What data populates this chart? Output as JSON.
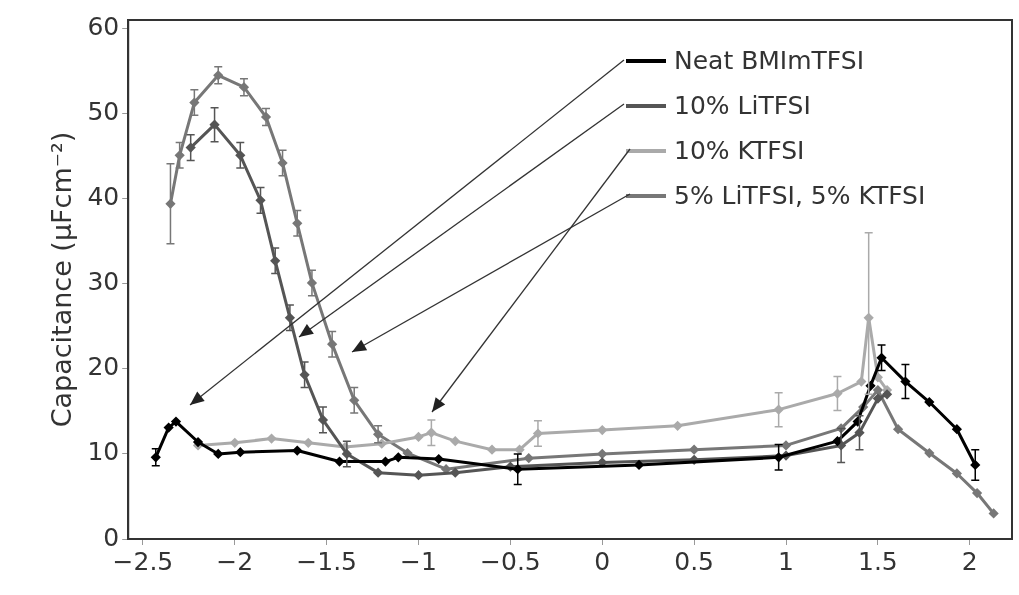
{
  "chart_data": {
    "type": "line",
    "ylabel": "Capacitance (μFcm⁻²)",
    "legend": "top right",
    "marker": "diamond",
    "line_style": "solid",
    "grid": false,
    "xlim": [
      -2.58,
      2.23
    ],
    "ylim": [
      0,
      61
    ],
    "xticks": [
      {
        "value": -2.5,
        "label": "−2.5"
      },
      {
        "value": -2,
        "label": "−2"
      },
      {
        "value": -1.5,
        "label": "−1.5"
      },
      {
        "value": -1,
        "label": "−1"
      },
      {
        "value": -0.5,
        "label": "−0.5"
      },
      0,
      0.5,
      1,
      1.5,
      2
    ],
    "yticks": [
      0,
      10,
      20,
      30,
      40,
      50,
      60
    ],
    "series": [
      {
        "name": "Neat BMImTFSI",
        "color": "#000000",
        "x": [
          -2.43,
          -2.36,
          -2.32,
          -2.2,
          -2.09,
          -1.97,
          -1.66,
          -1.43,
          -1.18,
          -1.11,
          -0.89,
          -0.46,
          0.2,
          0.96,
          1.28,
          1.39,
          1.46,
          1.52,
          1.65,
          1.78,
          1.93,
          2.03
        ],
        "values": [
          9.6,
          13.1,
          13.8,
          11.4,
          10,
          10.2,
          10.4,
          9.1,
          9.1,
          9.6,
          9.4,
          8.2,
          8.7,
          9.6,
          11.5,
          13.8,
          18,
          21.3,
          18.5,
          16.1,
          12.9,
          8.7
        ],
        "errors": [
          1,
          null,
          null,
          null,
          null,
          null,
          null,
          null,
          null,
          null,
          null,
          1.8,
          null,
          1.5,
          null,
          null,
          null,
          1.5,
          2,
          null,
          null,
          1.8
        ]
      },
      {
        "name": "10% LiTFSI",
        "color": "#555555",
        "x": [
          -2.24,
          -2.11,
          -1.97,
          -1.86,
          -1.78,
          -1.7,
          -1.62,
          -1.52,
          -1.39,
          -1.22,
          -1,
          -0.8,
          -0.5,
          0,
          0.5,
          1,
          1.3,
          1.4,
          1.5,
          1.55
        ],
        "values": [
          46,
          48.7,
          45.1,
          39.8,
          32.7,
          26,
          19.3,
          14,
          10,
          7.8,
          7.5,
          7.8,
          8.5,
          9,
          9.3,
          9.8,
          11,
          12.5,
          16.5,
          17
        ],
        "errors": [
          1.5,
          2,
          1.5,
          1.5,
          1.5,
          1.5,
          1.5,
          1.5,
          1.5,
          null,
          null,
          null,
          null,
          null,
          null,
          null,
          2,
          2,
          null,
          null
        ]
      },
      {
        "name": "10% KTFSI",
        "color": "#aaaaaa",
        "x": [
          -2.2,
          -2,
          -1.8,
          -1.6,
          -1.4,
          -1.2,
          -1,
          -0.93,
          -0.8,
          -0.6,
          -0.45,
          -0.35,
          0,
          0.41,
          0.96,
          1.28,
          1.41,
          1.45,
          1.5,
          1.55
        ],
        "values": [
          11,
          11.3,
          11.8,
          11.3,
          10.8,
          11.2,
          12,
          12.5,
          11.5,
          10.5,
          10.5,
          12.4,
          12.8,
          13.3,
          15.2,
          17.1,
          18.5,
          26,
          19,
          17.5
        ],
        "errors": [
          null,
          null,
          null,
          null,
          null,
          null,
          null,
          1.5,
          null,
          null,
          null,
          1.5,
          null,
          null,
          2,
          2,
          null,
          [
            17,
            36
          ],
          null,
          null
        ]
      },
      {
        "name": "5% LiTFSI, 5% KTFSI",
        "color": "#777777",
        "x": [
          -2.35,
          -2.3,
          -2.22,
          -2.09,
          -1.95,
          -1.83,
          -1.74,
          -1.66,
          -1.58,
          -1.47,
          -1.35,
          -1.22,
          -1.06,
          -0.85,
          -0.4,
          0,
          0.5,
          1,
          1.3,
          1.42,
          1.5,
          1.61,
          1.78,
          1.93,
          2.04,
          2.13
        ],
        "values": [
          39.4,
          45.1,
          51.3,
          54.5,
          53.1,
          49.6,
          44.2,
          37.1,
          30.1,
          22.9,
          16.3,
          12.3,
          10.1,
          8.2,
          9.5,
          10,
          10.5,
          11,
          13,
          15.5,
          17.5,
          12.9,
          10.1,
          7.7,
          5.4,
          3
        ],
        "errors": [
          4.7,
          1.5,
          1.5,
          1,
          1,
          1,
          1.5,
          1.5,
          1.5,
          1.5,
          1.5,
          1,
          null,
          null,
          null,
          null,
          null,
          null,
          null,
          null,
          null,
          null,
          null,
          null,
          null,
          null
        ]
      }
    ]
  }
}
